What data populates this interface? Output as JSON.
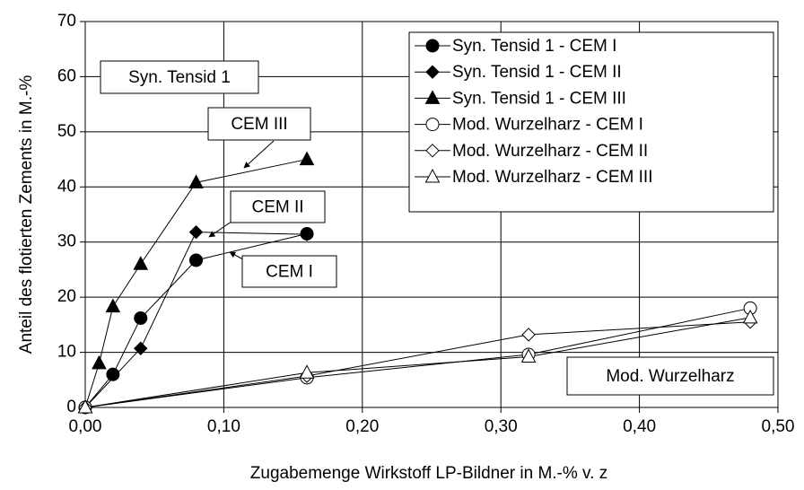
{
  "chart_data": {
    "type": "scatter",
    "xlabel": "Zugabemenge Wirkstoff LP-Bildner in M.-% v. z",
    "ylabel": "Anteil des flotierten Zements in M.-%",
    "xlim": [
      0,
      0.5
    ],
    "xticks": [
      {
        "value": 0,
        "label": "0,00"
      },
      {
        "value": 0.1,
        "label": "0,10"
      },
      {
        "value": 0.2,
        "label": "0,20"
      },
      {
        "value": 0.3,
        "label": "0,30"
      },
      {
        "value": 0.4,
        "label": "0,40"
      },
      {
        "value": 0.5,
        "label": "0,50"
      }
    ],
    "ylim": [
      0,
      70
    ],
    "yticks": [
      0,
      10,
      20,
      30,
      40,
      50,
      60,
      70
    ],
    "grid": true,
    "legend": "upper right",
    "series": [
      {
        "name": "Syn. Tensid 1 - CEM I",
        "color": "#000000",
        "marker": "circle",
        "filled": true,
        "x": [
          0,
          0.02,
          0.04,
          0.08,
          0.16
        ],
        "values": [
          0,
          6,
          16.2,
          26.7,
          31.5
        ]
      },
      {
        "name": "Syn. Tensid 1 - CEM II",
        "color": "#000000",
        "marker": "diamond",
        "filled": true,
        "x": [
          0,
          0.04,
          0.08,
          0.16
        ],
        "values": [
          0,
          10.7,
          31.8,
          31.4
        ]
      },
      {
        "name": "Syn. Tensid 1 - CEM III",
        "color": "#000000",
        "marker": "triangle",
        "filled": true,
        "x": [
          0,
          0.01,
          0.02,
          0.04,
          0.08,
          0.16
        ],
        "values": [
          0,
          8,
          18.3,
          26,
          40.8,
          45
        ]
      },
      {
        "name": "Mod. Wurzelharz - CEM I",
        "color": "#000000",
        "marker": "circle",
        "filled": false,
        "x": [
          0,
          0.16,
          0.32,
          0.48
        ],
        "values": [
          0,
          5.4,
          9.6,
          18
        ]
      },
      {
        "name": "Mod. Wurzelharz - CEM II",
        "color": "#000000",
        "marker": "diamond",
        "filled": false,
        "x": [
          0,
          0.16,
          0.32,
          0.48
        ],
        "values": [
          0,
          5.7,
          13.2,
          15.5
        ]
      },
      {
        "name": "Mod. Wurzelharz - CEM III",
        "color": "#000000",
        "marker": "triangle",
        "filled": false,
        "x": [
          0,
          0.16,
          0.32,
          0.48
        ],
        "values": [
          0,
          6.3,
          9.2,
          16.3
        ]
      }
    ],
    "annotations": [
      "Syn. Tensid 1",
      "CEM III",
      "CEM II",
      "CEM I",
      "Mod. Wurzelharz"
    ]
  }
}
